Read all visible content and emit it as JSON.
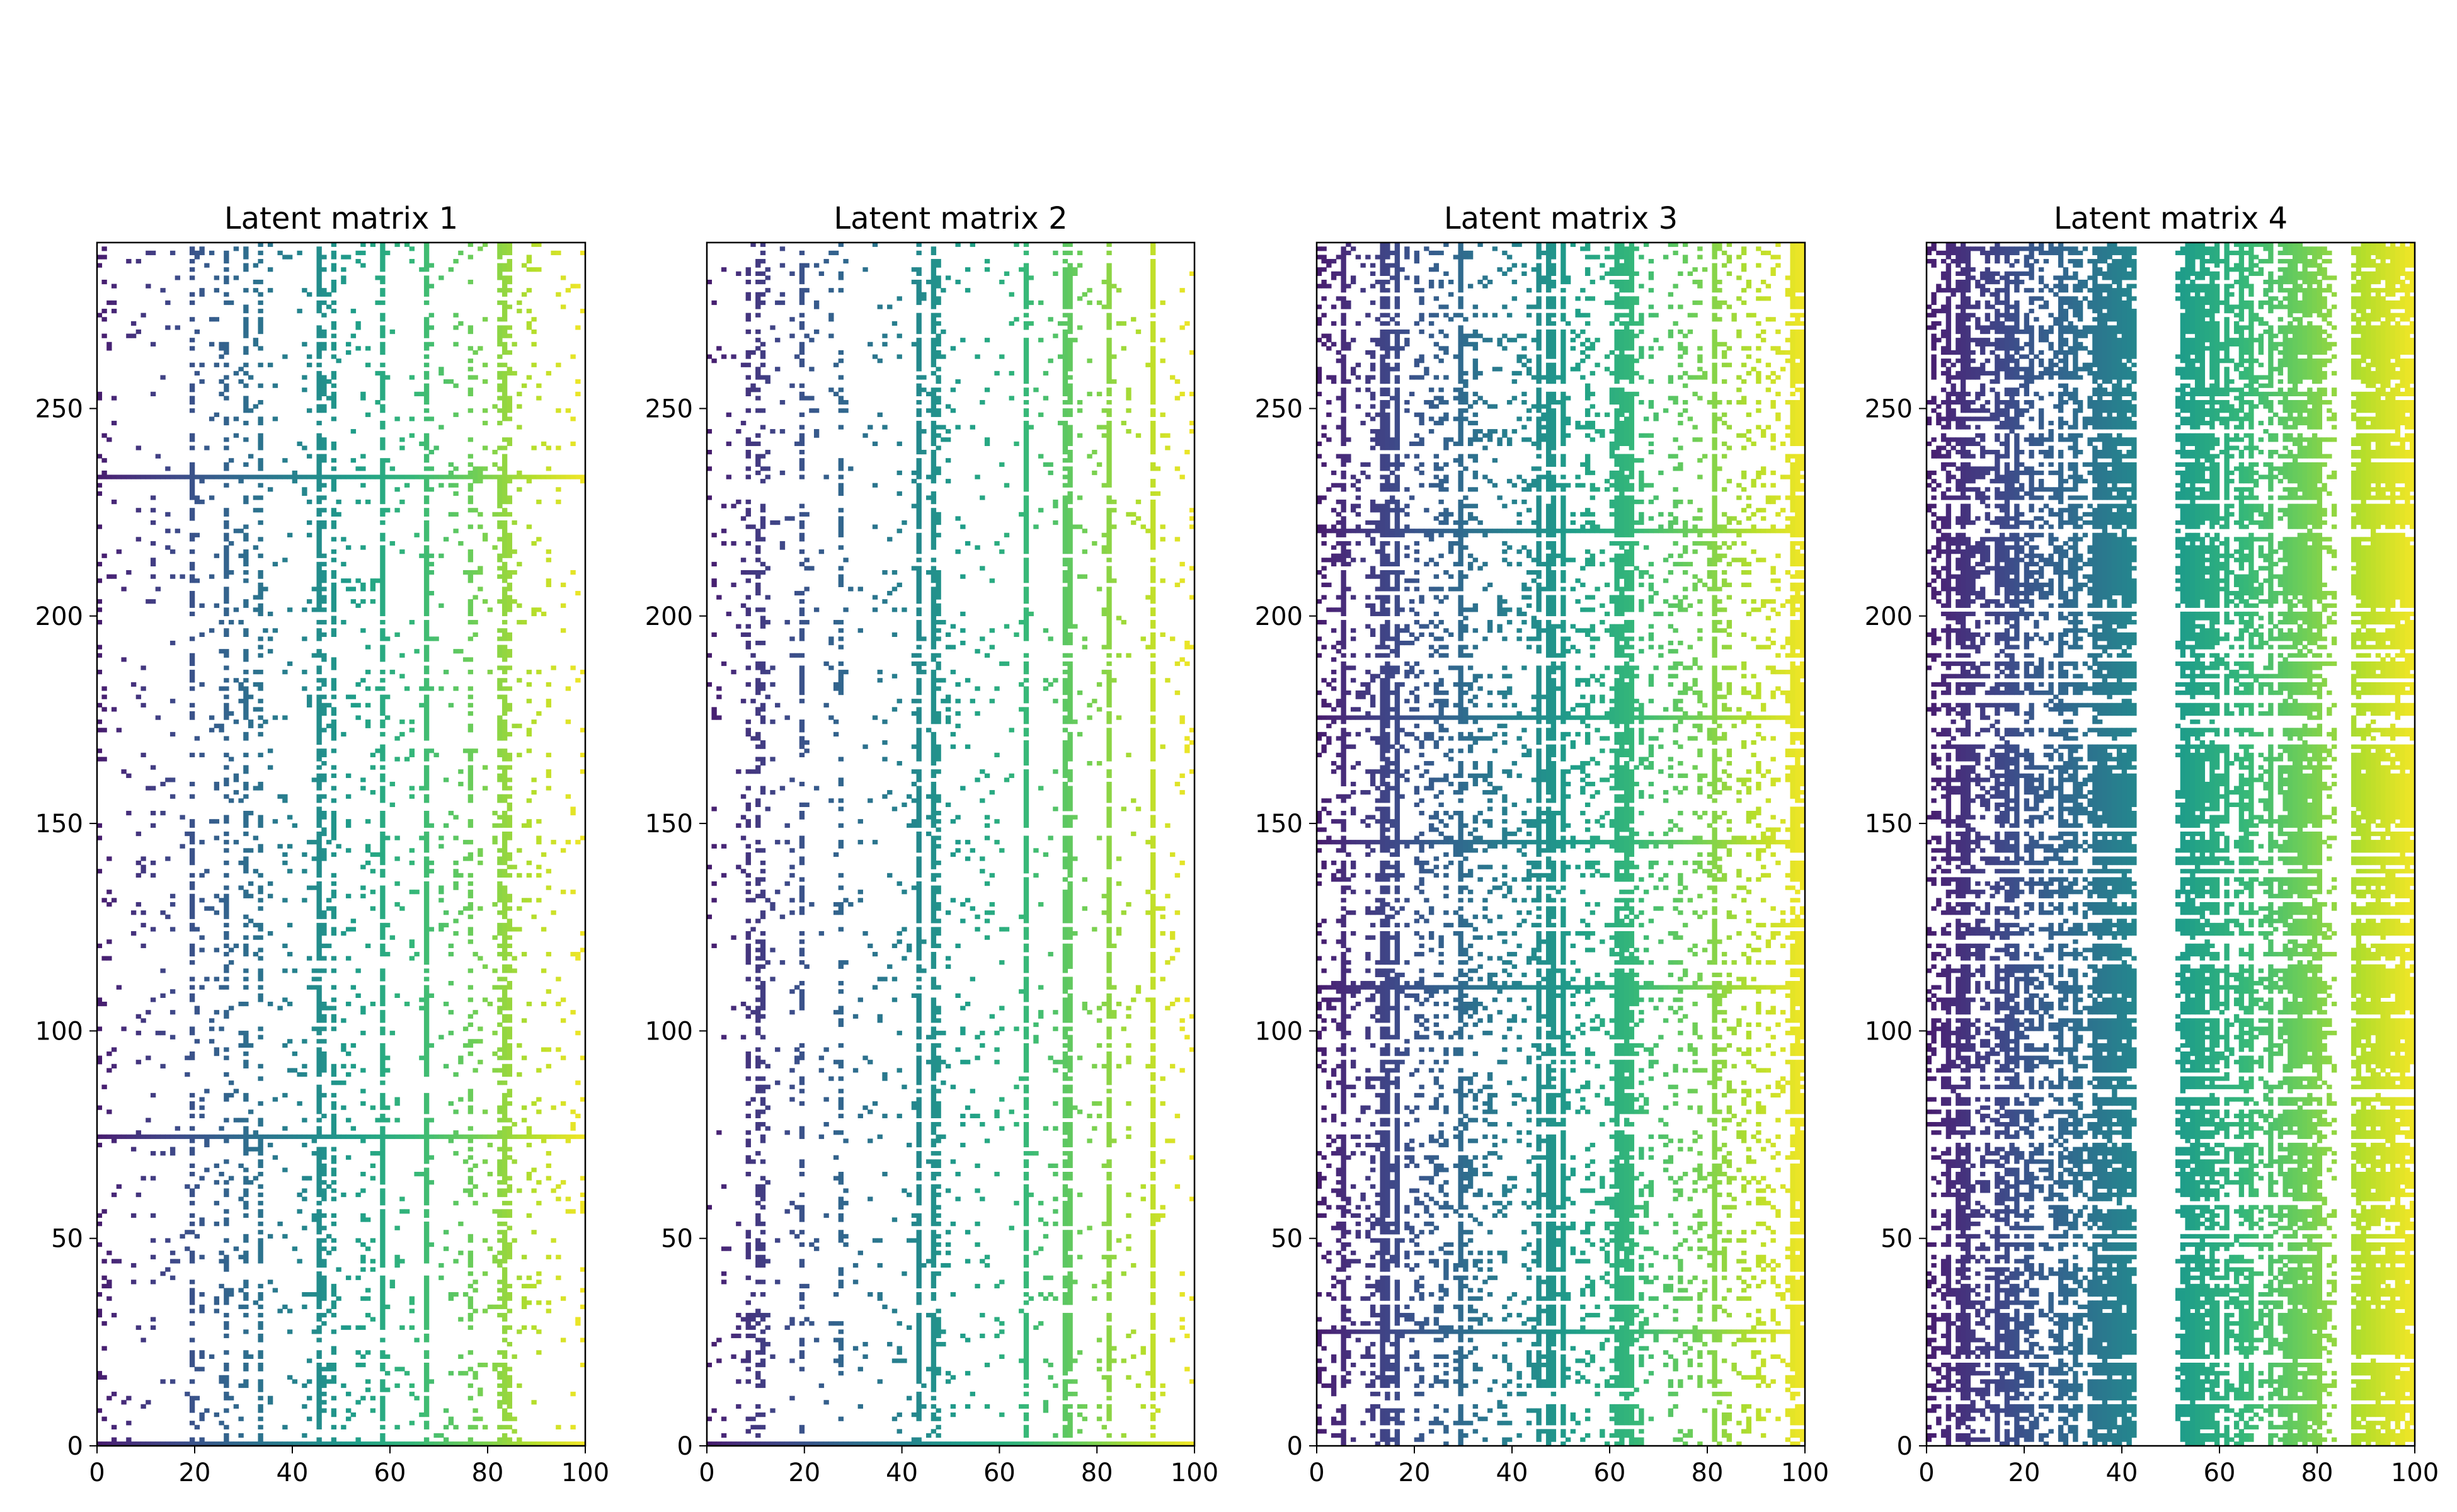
{
  "chart_data": [
    {
      "type": "heatmap",
      "title": "Latent matrix 1",
      "xlim": [
        0,
        100
      ],
      "ylim": [
        0,
        290
      ],
      "xticks": [
        0,
        20,
        40,
        60,
        80,
        100
      ],
      "yticks": [
        0,
        50,
        100,
        150,
        200,
        250
      ],
      "colormap": "viridis",
      "fill_density": 0.08,
      "full_columns": [
        45,
        58,
        67,
        83
      ],
      "cluster_columns": [
        19,
        26,
        30,
        33,
        46,
        48,
        76,
        82,
        84
      ],
      "full_rows": [
        0,
        74,
        233
      ],
      "notes": "sparse matrix; cell colour increases with column index"
    },
    {
      "type": "heatmap",
      "title": "Latent matrix 2",
      "xlim": [
        0,
        100
      ],
      "ylim": [
        0,
        290
      ],
      "xticks": [
        0,
        20,
        40,
        60,
        80,
        100
      ],
      "yticks": [
        0,
        50,
        100,
        150,
        200,
        250
      ],
      "colormap": "viridis",
      "fill_density": 0.06,
      "full_columns": [
        43,
        46,
        65,
        73,
        74,
        82,
        91
      ],
      "cluster_columns": [
        8,
        10,
        11,
        19,
        27,
        47
      ],
      "full_rows": [
        0
      ],
      "notes": "sparse matrix; cell colour increases with column index"
    },
    {
      "type": "heatmap",
      "title": "Latent matrix 3",
      "xlim": [
        0,
        100
      ],
      "ylim": [
        0,
        290
      ],
      "xticks": [
        0,
        20,
        40,
        60,
        80,
        100
      ],
      "yticks": [
        0,
        50,
        100,
        150,
        200,
        250
      ],
      "colormap": "viridis",
      "fill_density": 0.22,
      "full_columns": [
        16,
        47,
        50,
        81
      ],
      "cluster_columns": [
        5,
        13,
        14,
        29,
        45,
        48,
        61,
        62,
        63,
        64,
        97,
        98,
        99
      ],
      "full_rows": [
        27,
        110,
        145,
        175,
        220
      ],
      "notes": "denser matrix; cell colour increases with column index"
    },
    {
      "type": "heatmap",
      "title": "Latent matrix 4",
      "xlim": [
        0,
        100
      ],
      "ylim": [
        0,
        290
      ],
      "xticks": [
        0,
        20,
        40,
        60,
        80,
        100
      ],
      "yticks": [
        0,
        50,
        100,
        150,
        200,
        250
      ],
      "colormap": "viridis",
      "fill_density": 0.72,
      "full_columns": [
        34,
        35,
        36,
        37,
        38,
        39,
        40,
        41,
        52,
        53,
        54,
        55,
        56,
        74,
        75,
        76,
        77,
        78,
        88,
        89,
        90,
        91,
        92,
        93,
        94,
        95,
        96,
        97,
        98,
        99
      ],
      "cluster_columns": [],
      "empty_columns": [
        43,
        44,
        45,
        46,
        47,
        48,
        49,
        50,
        84,
        85,
        86
      ],
      "full_rows": [],
      "notes": "mostly filled matrix with white column gaps; cell colour increases with column index"
    }
  ]
}
